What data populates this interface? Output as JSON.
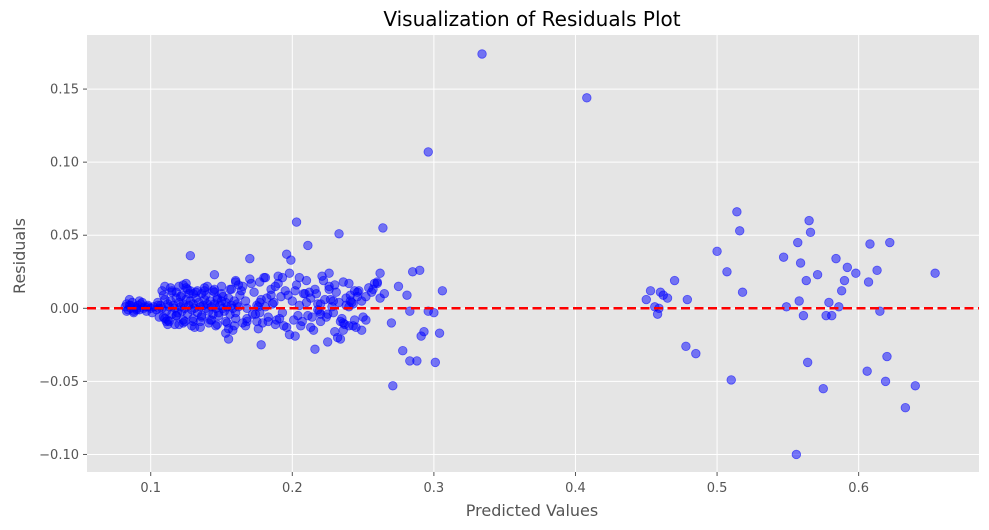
{
  "chart_data": {
    "type": "scatter",
    "title": "Visualization of Residuals Plot",
    "xlabel": "Predicted Values",
    "ylabel": "Residuals",
    "xlim": [
      0.055,
      0.685
    ],
    "ylim": [
      -0.112,
      0.187
    ],
    "xticks": [
      0.1,
      0.2,
      0.3,
      0.4,
      0.5,
      0.6
    ],
    "xtick_labels": [
      "0.1",
      "0.2",
      "0.3",
      "0.4",
      "0.5",
      "0.6"
    ],
    "yticks": [
      -0.1,
      -0.05,
      0.0,
      0.05,
      0.1,
      0.15
    ],
    "ytick_labels": [
      "−0.10",
      "−0.05",
      "0.00",
      "0.05",
      "0.10",
      "0.15"
    ],
    "grid": true,
    "legend": "none",
    "colors": {
      "plot_background": "#e5e5e5",
      "grid": "#ffffff",
      "point": "#0000ff",
      "reference_line": "#ff0000"
    },
    "reference_line": {
      "y": 0.0,
      "style": "dashed"
    },
    "series": [
      {
        "x": [
          0.082,
          0.083,
          0.084,
          0.085,
          0.086,
          0.087,
          0.088,
          0.089,
          0.09,
          0.091,
          0.092,
          0.093,
          0.095,
          0.096,
          0.097,
          0.098,
          0.1,
          0.102,
          0.104,
          0.105,
          0.083,
          0.086,
          0.09,
          0.094,
          0.098,
          0.101,
          0.106,
          0.085,
          0.088,
          0.092,
          0.105,
          0.107,
          0.108,
          0.11,
          0.111,
          0.112,
          0.113,
          0.114,
          0.115,
          0.116,
          0.117,
          0.118,
          0.119,
          0.12,
          0.121,
          0.122,
          0.123,
          0.124,
          0.125,
          0.126,
          0.127,
          0.128,
          0.129,
          0.13,
          0.131,
          0.132,
          0.133,
          0.134,
          0.135,
          0.136,
          0.137,
          0.138,
          0.139,
          0.14,
          0.141,
          0.142,
          0.143,
          0.144,
          0.145,
          0.146,
          0.147,
          0.148,
          0.149,
          0.15,
          0.151,
          0.152,
          0.153,
          0.154,
          0.155,
          0.156,
          0.157,
          0.158,
          0.159,
          0.16,
          0.161,
          0.162,
          0.106,
          0.109,
          0.112,
          0.115,
          0.118,
          0.121,
          0.124,
          0.127,
          0.13,
          0.133,
          0.136,
          0.139,
          0.142,
          0.145,
          0.148,
          0.151,
          0.154,
          0.157,
          0.16,
          0.163,
          0.108,
          0.111,
          0.114,
          0.117,
          0.12,
          0.123,
          0.126,
          0.129,
          0.132,
          0.135,
          0.138,
          0.141,
          0.144,
          0.147,
          0.15,
          0.153,
          0.156,
          0.159,
          0.162,
          0.165,
          0.11,
          0.115,
          0.12,
          0.125,
          0.13,
          0.135,
          0.14,
          0.145,
          0.15,
          0.155,
          0.16,
          0.113,
          0.118,
          0.123,
          0.128,
          0.11,
          0.123,
          0.131,
          0.138,
          0.145,
          0.153,
          0.16,
          0.112,
          0.13,
          0.128,
          0.118,
          0.122,
          0.146,
          0.155,
          0.158,
          0.143,
          0.136,
          0.125,
          0.109,
          0.147,
          0.165,
          0.167,
          0.168,
          0.17,
          0.172,
          0.173,
          0.175,
          0.176,
          0.177,
          0.178,
          0.179,
          0.18,
          0.181,
          0.183,
          0.185,
          0.187,
          0.188,
          0.19,
          0.192,
          0.193,
          0.195,
          0.196,
          0.198,
          0.2,
          0.201,
          0.203,
          0.205,
          0.206,
          0.208,
          0.21,
          0.211,
          0.213,
          0.215,
          0.216,
          0.218,
          0.22,
          0.221,
          0.223,
          0.225,
          0.226,
          0.228,
          0.23,
          0.231,
          0.233,
          0.235,
          0.236,
          0.238,
          0.24,
          0.241,
          0.243,
          0.245,
          0.247,
          0.249,
          0.25,
          0.252,
          0.254,
          0.256,
          0.258,
          0.26,
          0.262,
          0.168,
          0.174,
          0.182,
          0.189,
          0.197,
          0.204,
          0.212,
          0.219,
          0.227,
          0.234,
          0.242,
          0.186,
          0.191,
          0.209,
          0.214,
          0.229,
          0.237,
          0.246,
          0.177,
          0.202,
          0.168,
          0.17,
          0.175,
          0.176,
          0.177,
          0.183,
          0.19,
          0.198,
          0.205,
          0.21,
          0.216,
          0.225,
          0.23,
          0.234,
          0.24,
          0.244,
          0.252,
          0.257,
          0.164,
          0.181,
          0.167,
          0.171,
          0.178,
          0.196,
          0.213,
          0.203,
          0.22,
          0.236,
          0.222,
          0.229,
          0.241,
          0.244,
          0.249,
          0.264,
          0.26,
          0.207,
          0.217,
          0.226,
          0.232,
          0.246,
          0.202,
          0.211,
          0.233,
          0.199,
          0.194,
          0.185,
          0.188,
          0.193,
          0.236,
          0.238,
          0.24,
          0.243,
          0.226,
          0.224,
          0.22,
          0.218,
          0.265,
          0.27,
          0.275,
          0.278,
          0.281,
          0.283,
          0.285,
          0.288,
          0.29,
          0.293,
          0.296,
          0.3,
          0.304,
          0.306,
          0.296,
          0.291,
          0.283,
          0.262,
          0.271,
          0.301,
          0.334,
          0.408,
          0.45,
          0.453,
          0.456,
          0.458,
          0.46,
          0.459,
          0.462,
          0.465,
          0.47,
          0.478,
          0.479,
          0.485,
          0.5,
          0.507,
          0.51,
          0.514,
          0.516,
          0.518,
          0.547,
          0.549,
          0.556,
          0.557,
          0.558,
          0.559,
          0.561,
          0.563,
          0.564,
          0.565,
          0.566,
          0.571,
          0.575,
          0.577,
          0.579,
          0.581,
          0.584,
          0.586,
          0.588,
          0.59,
          0.592,
          0.598,
          0.606,
          0.607,
          0.608,
          0.613,
          0.615,
          0.619,
          0.62,
          0.622,
          0.633,
          0.64,
          0.654
        ],
        "y": [
          0.001,
          0.003,
          -0.001,
          0.002,
          0.0,
          0.004,
          -0.002,
          0.001,
          0.0,
          0.002,
          -0.001,
          0.003,
          0.0,
          0.001,
          -0.002,
          0.002,
          0.0,
          0.001,
          -0.001,
          0.002,
          -0.002,
          0.002,
          -0.001,
          0.004,
          0.001,
          -0.003,
          0.0,
          0.006,
          -0.003,
          0.005,
          0.004,
          0.002,
          0.0,
          0.006,
          -0.002,
          0.003,
          0.001,
          0.005,
          -0.004,
          0.002,
          0.0,
          0.007,
          -0.003,
          0.004,
          0.001,
          -0.002,
          0.003,
          0.0,
          0.006,
          -0.004,
          0.002,
          0.005,
          -0.001,
          0.003,
          0.0,
          0.007,
          -0.003,
          0.004,
          0.001,
          -0.005,
          0.002,
          0.006,
          0.0,
          0.003,
          -0.002,
          0.005,
          0.001,
          -0.004,
          0.003,
          0.0,
          0.006,
          -0.003,
          0.002,
          0.005,
          0.0,
          -0.002,
          0.004,
          0.001,
          0.007,
          -0.004,
          0.002,
          0.0,
          0.005,
          -0.003,
          0.003,
          0.001,
          -0.006,
          0.009,
          -0.008,
          0.011,
          -0.005,
          0.008,
          -0.009,
          0.01,
          -0.007,
          0.012,
          -0.006,
          0.009,
          -0.008,
          0.011,
          -0.005,
          0.008,
          -0.01,
          0.013,
          -0.007,
          0.009,
          0.012,
          -0.009,
          0.014,
          -0.011,
          0.015,
          -0.01,
          0.013,
          -0.012,
          0.011,
          -0.009,
          0.014,
          -0.01,
          0.012,
          -0.011,
          0.015,
          -0.009,
          0.013,
          -0.012,
          0.016,
          -0.01,
          0.015,
          0.012,
          -0.011,
          0.017,
          0.01,
          -0.013,
          0.015,
          0.013,
          0.01,
          -0.014,
          0.019,
          -0.009,
          0.011,
          -0.008,
          0.012,
          -0.007,
          0.016,
          -0.013,
          0.012,
          0.023,
          -0.017,
          0.018,
          -0.011,
          -0.009,
          0.036,
          -0.005,
          0.009,
          -0.012,
          -0.021,
          -0.015,
          -0.008,
          0.01,
          0.014,
          -0.006,
          0.007,
          0.015,
          0.005,
          -0.009,
          0.02,
          -0.004,
          0.011,
          0.002,
          -0.014,
          0.018,
          0.006,
          -0.01,
          0.021,
          0.001,
          -0.006,
          0.013,
          0.004,
          -0.011,
          0.017,
          0.008,
          -0.003,
          0.012,
          -0.013,
          0.024,
          0.005,
          -0.008,
          0.016,
          0.002,
          -0.012,
          0.01,
          0.019,
          -0.005,
          0.007,
          -0.015,
          0.013,
          0.003,
          -0.009,
          0.022,
          0.006,
          -0.004,
          0.015,
          0.001,
          -0.016,
          0.011,
          0.004,
          -0.007,
          0.018,
          0.002,
          -0.012,
          0.009,
          0.003,
          -0.013,
          0.012,
          0.005,
          -0.006,
          0.008,
          0.014,
          0.011,
          0.017,
          0.018,
          0.024,
          0.0,
          -0.004,
          0.007,
          -0.008,
          0.009,
          -0.005,
          0.011,
          -0.002,
          0.006,
          -0.009,
          0.004,
          0.003,
          -0.007,
          0.01,
          -0.006,
          0.005,
          -0.011,
          0.008,
          -0.003,
          0.012,
          -0.007,
          0.034,
          -0.009,
          0.001,
          0.004,
          -0.009,
          0.022,
          -0.018,
          0.021,
          0.004,
          -0.028,
          -0.023,
          0.016,
          -0.021,
          0.001,
          0.012,
          -0.008,
          0.013,
          0.012,
          0.021,
          -0.012,
          0.017,
          -0.025,
          0.037,
          -0.013,
          0.059,
          -0.004,
          -0.01,
          0.019,
          -0.003,
          0.005,
          -0.008,
          -0.015,
          0.055,
          0.017,
          -0.009,
          0.01,
          0.013,
          -0.02,
          0.011,
          -0.019,
          0.043,
          0.051,
          0.033,
          -0.012,
          0.009,
          0.015,
          0.021,
          -0.015,
          0.007,
          0.017,
          -0.012,
          0.024,
          -0.006,
          0.003,
          -0.001,
          0.01,
          -0.01,
          0.015,
          -0.029,
          0.009,
          -0.002,
          0.025,
          -0.036,
          0.026,
          -0.016,
          0.107,
          -0.003,
          -0.017,
          0.012,
          -0.002,
          -0.019,
          -0.036,
          0.007,
          -0.053,
          -0.037,
          0.174,
          0.144,
          0.006,
          0.012,
          0.001,
          -0.004,
          0.011,
          0.0,
          0.009,
          0.007,
          0.019,
          -0.026,
          0.006,
          -0.031,
          0.039,
          0.025,
          -0.049,
          0.066,
          0.053,
          0.011,
          0.035,
          0.001,
          -0.1,
          0.045,
          0.005,
          0.031,
          -0.005,
          0.019,
          -0.037,
          0.06,
          0.052,
          0.023,
          -0.055,
          -0.005,
          0.004,
          -0.005,
          0.034,
          0.001,
          0.012,
          0.019,
          0.028,
          0.024,
          -0.043,
          0.018,
          0.044,
          0.026,
          -0.002,
          -0.05,
          -0.033,
          0.045,
          -0.068,
          -0.053,
          0.024
        ]
      }
    ]
  }
}
